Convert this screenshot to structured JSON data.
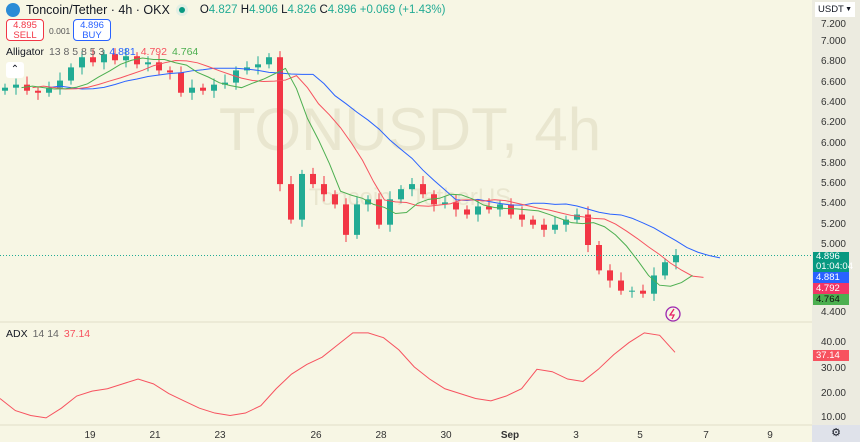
{
  "header": {
    "title": "Toncoin/Tether · 4h · OKX",
    "o_label": "O",
    "o": "4.827",
    "h_label": "H",
    "h": "4.906",
    "l_label": "L",
    "l": "4.826",
    "c_label": "C",
    "c": "4.896",
    "change": "+0.069 (+1.43%)"
  },
  "trade": {
    "sell_price": "4.895",
    "sell_label": "SELL",
    "spread": "0.001",
    "buy_price": "4.896",
    "buy_label": "BUY"
  },
  "alligator": {
    "label": "Alligator",
    "params": "13 8 5 8 5 3",
    "jaw": "4.881",
    "teeth": "4.792",
    "lips": "4.764"
  },
  "adx": {
    "label": "ADX",
    "params": "14 14",
    "value": "37.14"
  },
  "currency": "USDT",
  "price_tags": {
    "last": "4.896",
    "countdown": "01:04:04",
    "jaw": "4.881",
    "teeth": "4.792",
    "lips": "4.764"
  },
  "watermark": {
    "symbol": "TONUSDT, 4h",
    "name": "Toncoin / TetherUS"
  },
  "colors": {
    "up": "#22ab94",
    "down": "#f23645",
    "jaw": "#2962ff",
    "teeth": "#f7525f",
    "lips": "#4caf50",
    "adx": "#f7525f"
  },
  "chart_data": [
    {
      "type": "candlestick",
      "title": "Toncoin/Tether 4h OKX",
      "ylim": [
        4.3,
        7.2
      ],
      "yticks": [
        "7.200",
        "7.000",
        "6.800",
        "6.600",
        "6.400",
        "6.200",
        "6.000",
        "5.800",
        "5.600",
        "5.400",
        "5.200",
        "5.000",
        "4.400"
      ],
      "xticks": [
        "19",
        "21",
        "23",
        "26",
        "28",
        "30",
        "Sep",
        "3",
        "5",
        "7",
        "9"
      ],
      "closes": [
        6.55,
        6.58,
        6.52,
        6.5,
        6.55,
        6.62,
        6.75,
        6.85,
        6.8,
        6.88,
        6.82,
        6.86,
        6.78,
        6.8,
        6.72,
        6.7,
        6.5,
        6.55,
        6.52,
        6.58,
        6.6,
        6.72,
        6.75,
        6.78,
        6.85,
        5.6,
        5.25,
        5.7,
        5.6,
        5.5,
        5.4,
        5.1,
        5.4,
        5.45,
        5.2,
        5.45,
        5.55,
        5.6,
        5.5,
        5.4,
        5.42,
        5.35,
        5.3,
        5.38,
        5.35,
        5.4,
        5.3,
        5.25,
        5.2,
        5.15,
        5.2,
        5.25,
        5.3,
        5.0,
        4.75,
        4.65,
        4.55,
        4.55,
        4.52,
        4.7,
        4.83,
        4.9
      ],
      "last_price": 4.896
    },
    {
      "type": "line",
      "title": "ADX 14 14",
      "ylim": [
        5,
        45
      ],
      "yticks": [
        "40.00",
        "30.00",
        "20.00",
        "10.00"
      ],
      "values": [
        18,
        13,
        11,
        10,
        14,
        19,
        21,
        22,
        24,
        26,
        24,
        20,
        17,
        14,
        12,
        11,
        12,
        15,
        22,
        28,
        32,
        35,
        40,
        45,
        45,
        43,
        38,
        31,
        26,
        22,
        20,
        18,
        17,
        19,
        22,
        30,
        29,
        26,
        25,
        30,
        36,
        41,
        45,
        44,
        37
      ]
    }
  ]
}
